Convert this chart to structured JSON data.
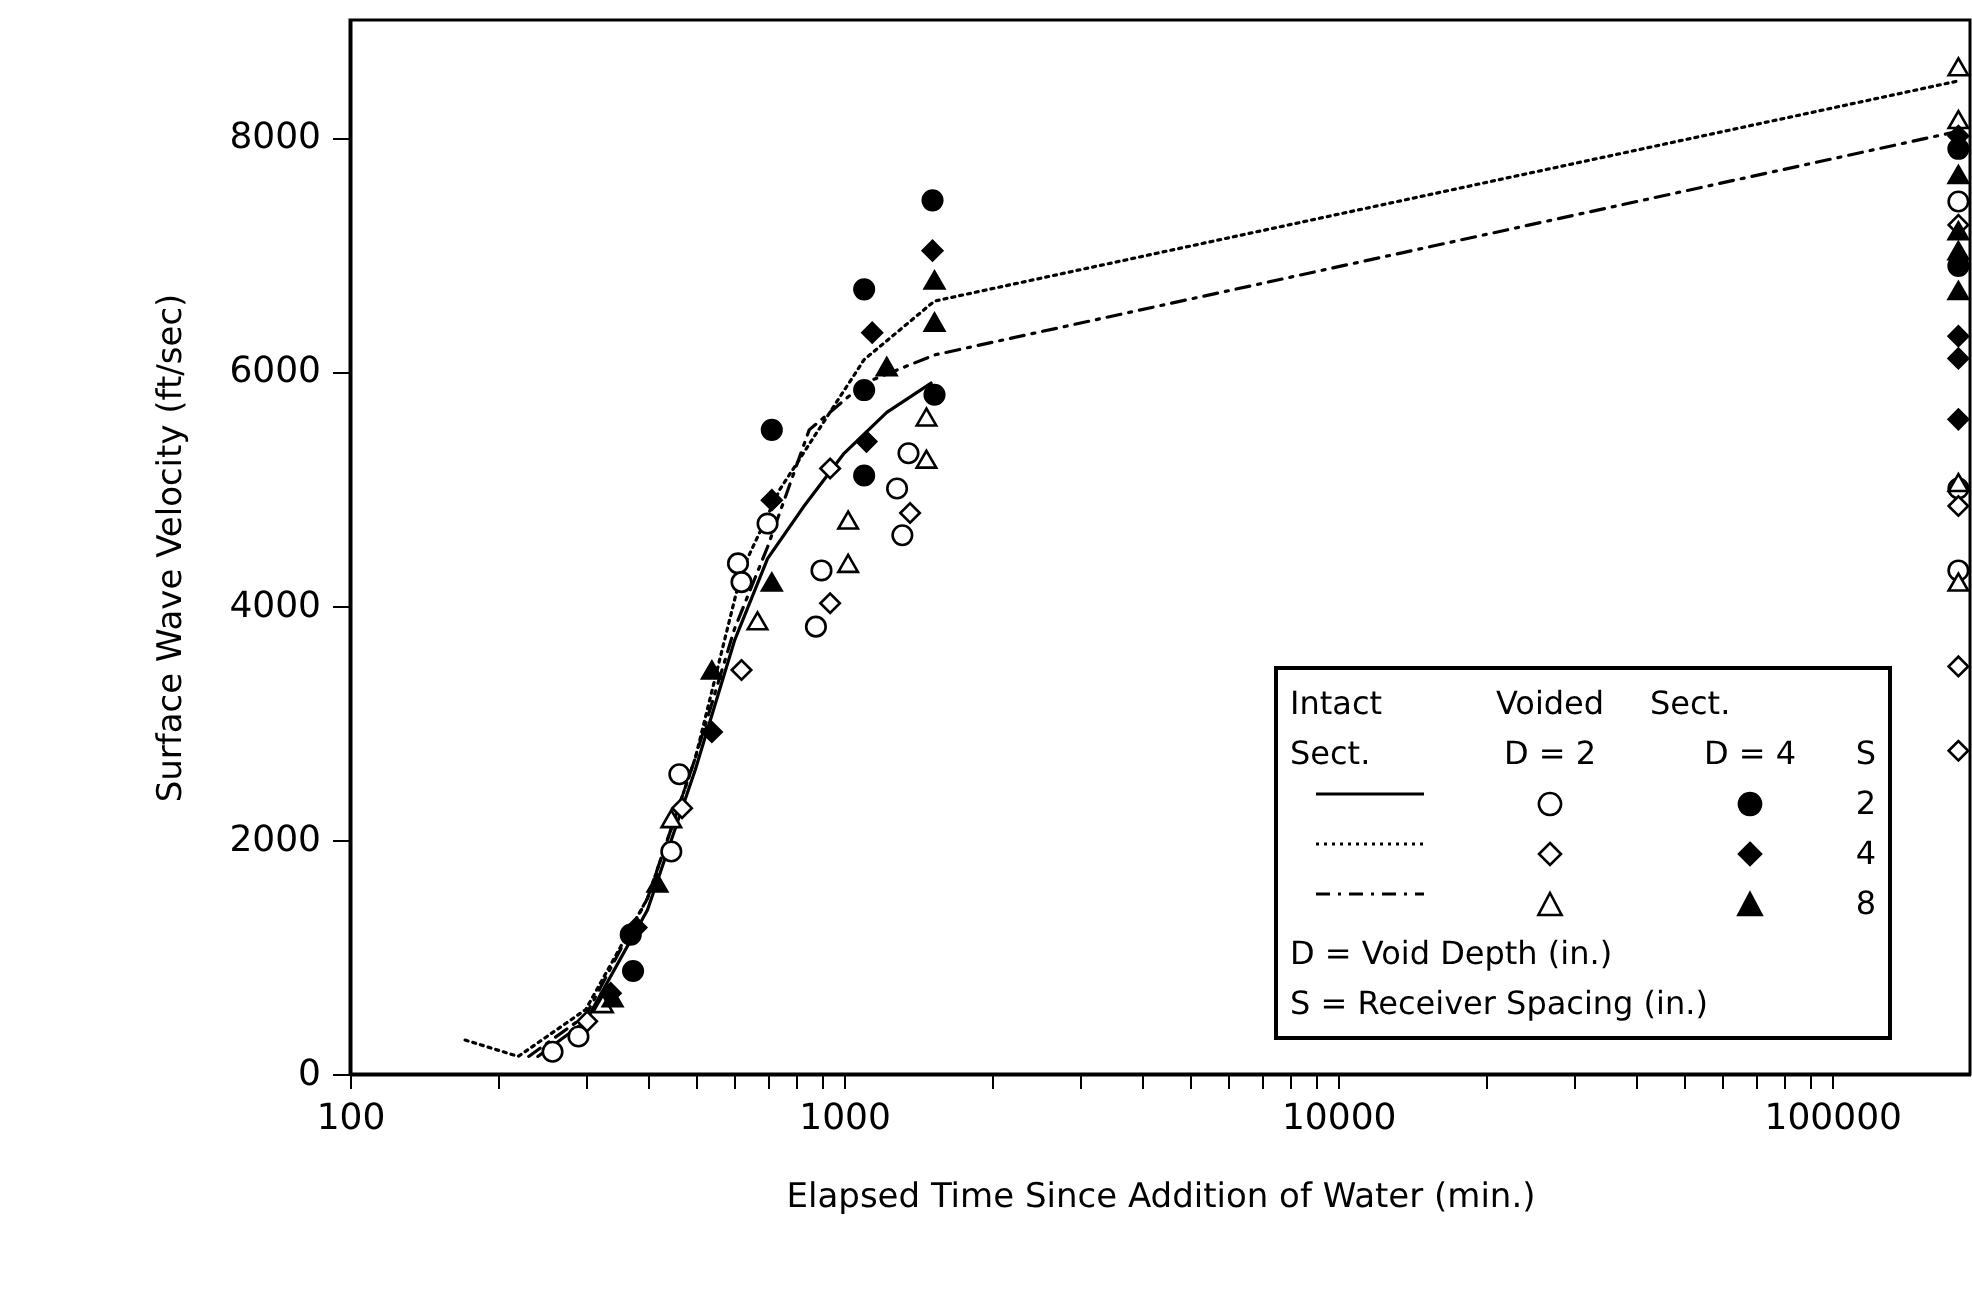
{
  "chart_data": {
    "type": "scatter",
    "xlabel": "Elapsed Time Since Addition of Water (min.)",
    "ylabel": "Surface Wave Velocity (ft/sec)",
    "log": "x",
    "xlim": [
      100,
      190000
    ],
    "ylim": [
      0,
      9000
    ],
    "xticks": [
      100,
      {
        "value": 200,
        "label": null
      },
      {
        "value": 300,
        "label": null
      },
      {
        "value": 400,
        "label": null
      },
      {
        "value": 500,
        "label": null
      },
      {
        "value": 600,
        "label": null
      },
      {
        "value": 700,
        "label": null
      },
      {
        "value": 800,
        "label": null
      },
      {
        "value": 900,
        "label": null
      },
      1000,
      {
        "value": 2000,
        "label": null
      },
      {
        "value": 3000,
        "label": null
      },
      {
        "value": 4000,
        "label": null
      },
      {
        "value": 5000,
        "label": null
      },
      {
        "value": 6000,
        "label": null
      },
      {
        "value": 7000,
        "label": null
      },
      {
        "value": 8000,
        "label": null
      },
      {
        "value": 9000,
        "label": null
      },
      10000,
      {
        "value": 20000,
        "label": null
      },
      {
        "value": 30000,
        "label": null
      },
      {
        "value": 40000,
        "label": null
      },
      {
        "value": 50000,
        "label": null
      },
      {
        "value": 60000,
        "label": null
      },
      {
        "value": 70000,
        "label": null
      },
      {
        "value": 80000,
        "label": null
      },
      {
        "value": 90000,
        "label": null
      },
      100000
    ],
    "yticks": [
      0,
      2000,
      4000,
      6000,
      8000
    ],
    "annotations": [
      "Intact",
      "Voided",
      "Sect.",
      "Sect.",
      "D = 2",
      "D = 4",
      "S",
      "2",
      "4",
      "8",
      "D = Void Depth (in.)",
      "S = Receiver Spacing (in.)"
    ],
    "series": [
      {
        "type": "line",
        "line_style": "solid",
        "color": "#000000",
        "x": [
          240,
          300,
          400,
          500,
          600,
          700,
          830,
          1000,
          1220,
          1500
        ],
        "values": [
          150,
          450,
          1400,
          2600,
          3700,
          4400,
          4850,
          5300,
          5650,
          5900
        ]
      },
      {
        "type": "line",
        "line_style": "dotted",
        "color": "#000000",
        "x": [
          171,
          219,
          300,
          400,
          500,
          621,
          741,
          1098,
          1524,
          180000
        ],
        "values": [
          290,
          150,
          550,
          1500,
          2700,
          4300,
          4990,
          6100,
          6600,
          8480
        ]
      },
      {
        "type": "line",
        "line_style": "dashdot",
        "color": "#000000",
        "x": [
          230,
          300,
          400,
          500,
          600,
          700,
          850,
          1100,
          1524,
          180000
        ],
        "values": [
          150,
          500,
          1500,
          2700,
          3800,
          4500,
          5500,
          5900,
          6140,
          8050
        ]
      },
      {
        "marker": "circle",
        "color": "#ffffff",
        "x": [
          257,
          290,
          447,
          464,
          610,
          620,
          700,
          877,
          900,
          1312,
          1280,
          1350,
          180000,
          180000,
          180000
        ],
        "values": [
          190,
          320,
          1900,
          2560,
          4360,
          4200,
          4700,
          3820,
          4300,
          4600,
          5000,
          5300,
          7450,
          5000,
          4300
        ]
      },
      {
        "marker": "diamond",
        "color": "#ffffff",
        "x": [
          302,
          470,
          620,
          937,
          937,
          1360,
          180000,
          180000,
          180000,
          180000
        ],
        "values": [
          450,
          2270,
          3450,
          5170,
          4020,
          4790,
          7250,
          4850,
          3480,
          2760
        ]
      },
      {
        "marker": "triangle",
        "color": "#ffffff",
        "x": [
          325,
          447,
          668,
          1019,
          1019,
          1468,
          1468,
          180000,
          180000,
          180000,
          180000
        ],
        "values": [
          600,
          2180,
          3870,
          4730,
          4360,
          5610,
          5250,
          8600,
          8150,
          5050,
          4200
        ]
      },
      {
        "marker": "circle",
        "color": "#000000",
        "x": [
          370,
          374,
          714,
          1098,
          1098,
          1098,
          1510,
          1524,
          180000,
          180000
        ],
        "values": [
          1190,
          880,
          5500,
          6700,
          5840,
          5110,
          7460,
          5800,
          7900,
          6900
        ]
      },
      {
        "marker": "diamond",
        "color": "#000000",
        "x": [
          337,
          380,
          540,
          714,
          1110,
          1140,
          1510,
          180000,
          180000,
          180000,
          180000
        ],
        "values": [
          690,
          1250,
          2920,
          4900,
          5400,
          6330,
          7030,
          8010,
          6300,
          6110,
          5590
        ]
      },
      {
        "marker": "triangle",
        "color": "#000000",
        "x": [
          340,
          419,
          540,
          714,
          1220,
          1524,
          1524,
          180000,
          180000,
          180000,
          180000
        ],
        "values": [
          650,
          1630,
          3450,
          4200,
          6040,
          6420,
          6780,
          7680,
          7200,
          7030,
          6690
        ]
      }
    ]
  }
}
